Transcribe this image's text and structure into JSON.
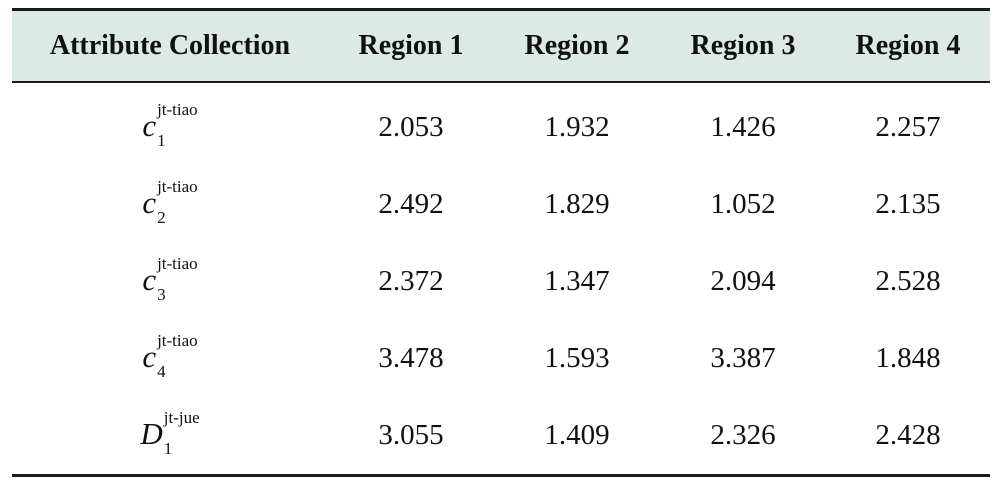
{
  "table": {
    "headers": [
      "Attribute Collection",
      "Region 1",
      "Region 2",
      "Region 3",
      "Region 4"
    ],
    "rows": [
      {
        "attr_base": "c",
        "attr_sub": "1",
        "attr_sup": "jt-tiao",
        "values": [
          "2.053",
          "1.932",
          "1.426",
          "2.257"
        ]
      },
      {
        "attr_base": "c",
        "attr_sub": "2",
        "attr_sup": "jt-tiao",
        "values": [
          "2.492",
          "1.829",
          "1.052",
          "2.135"
        ]
      },
      {
        "attr_base": "c",
        "attr_sub": "3",
        "attr_sup": "jt-tiao",
        "values": [
          "2.372",
          "1.347",
          "2.094",
          "2.528"
        ]
      },
      {
        "attr_base": "c",
        "attr_sub": "4",
        "attr_sup": "jt-tiao",
        "values": [
          "3.478",
          "1.593",
          "3.387",
          "1.848"
        ]
      },
      {
        "attr_base": "D",
        "attr_sub": "1",
        "attr_sup": "jt-jue",
        "values": [
          "3.055",
          "1.409",
          "2.326",
          "2.428"
        ]
      }
    ]
  },
  "colors": {
    "header_background": "#dde9e4",
    "rule": "#1a1a1a"
  }
}
